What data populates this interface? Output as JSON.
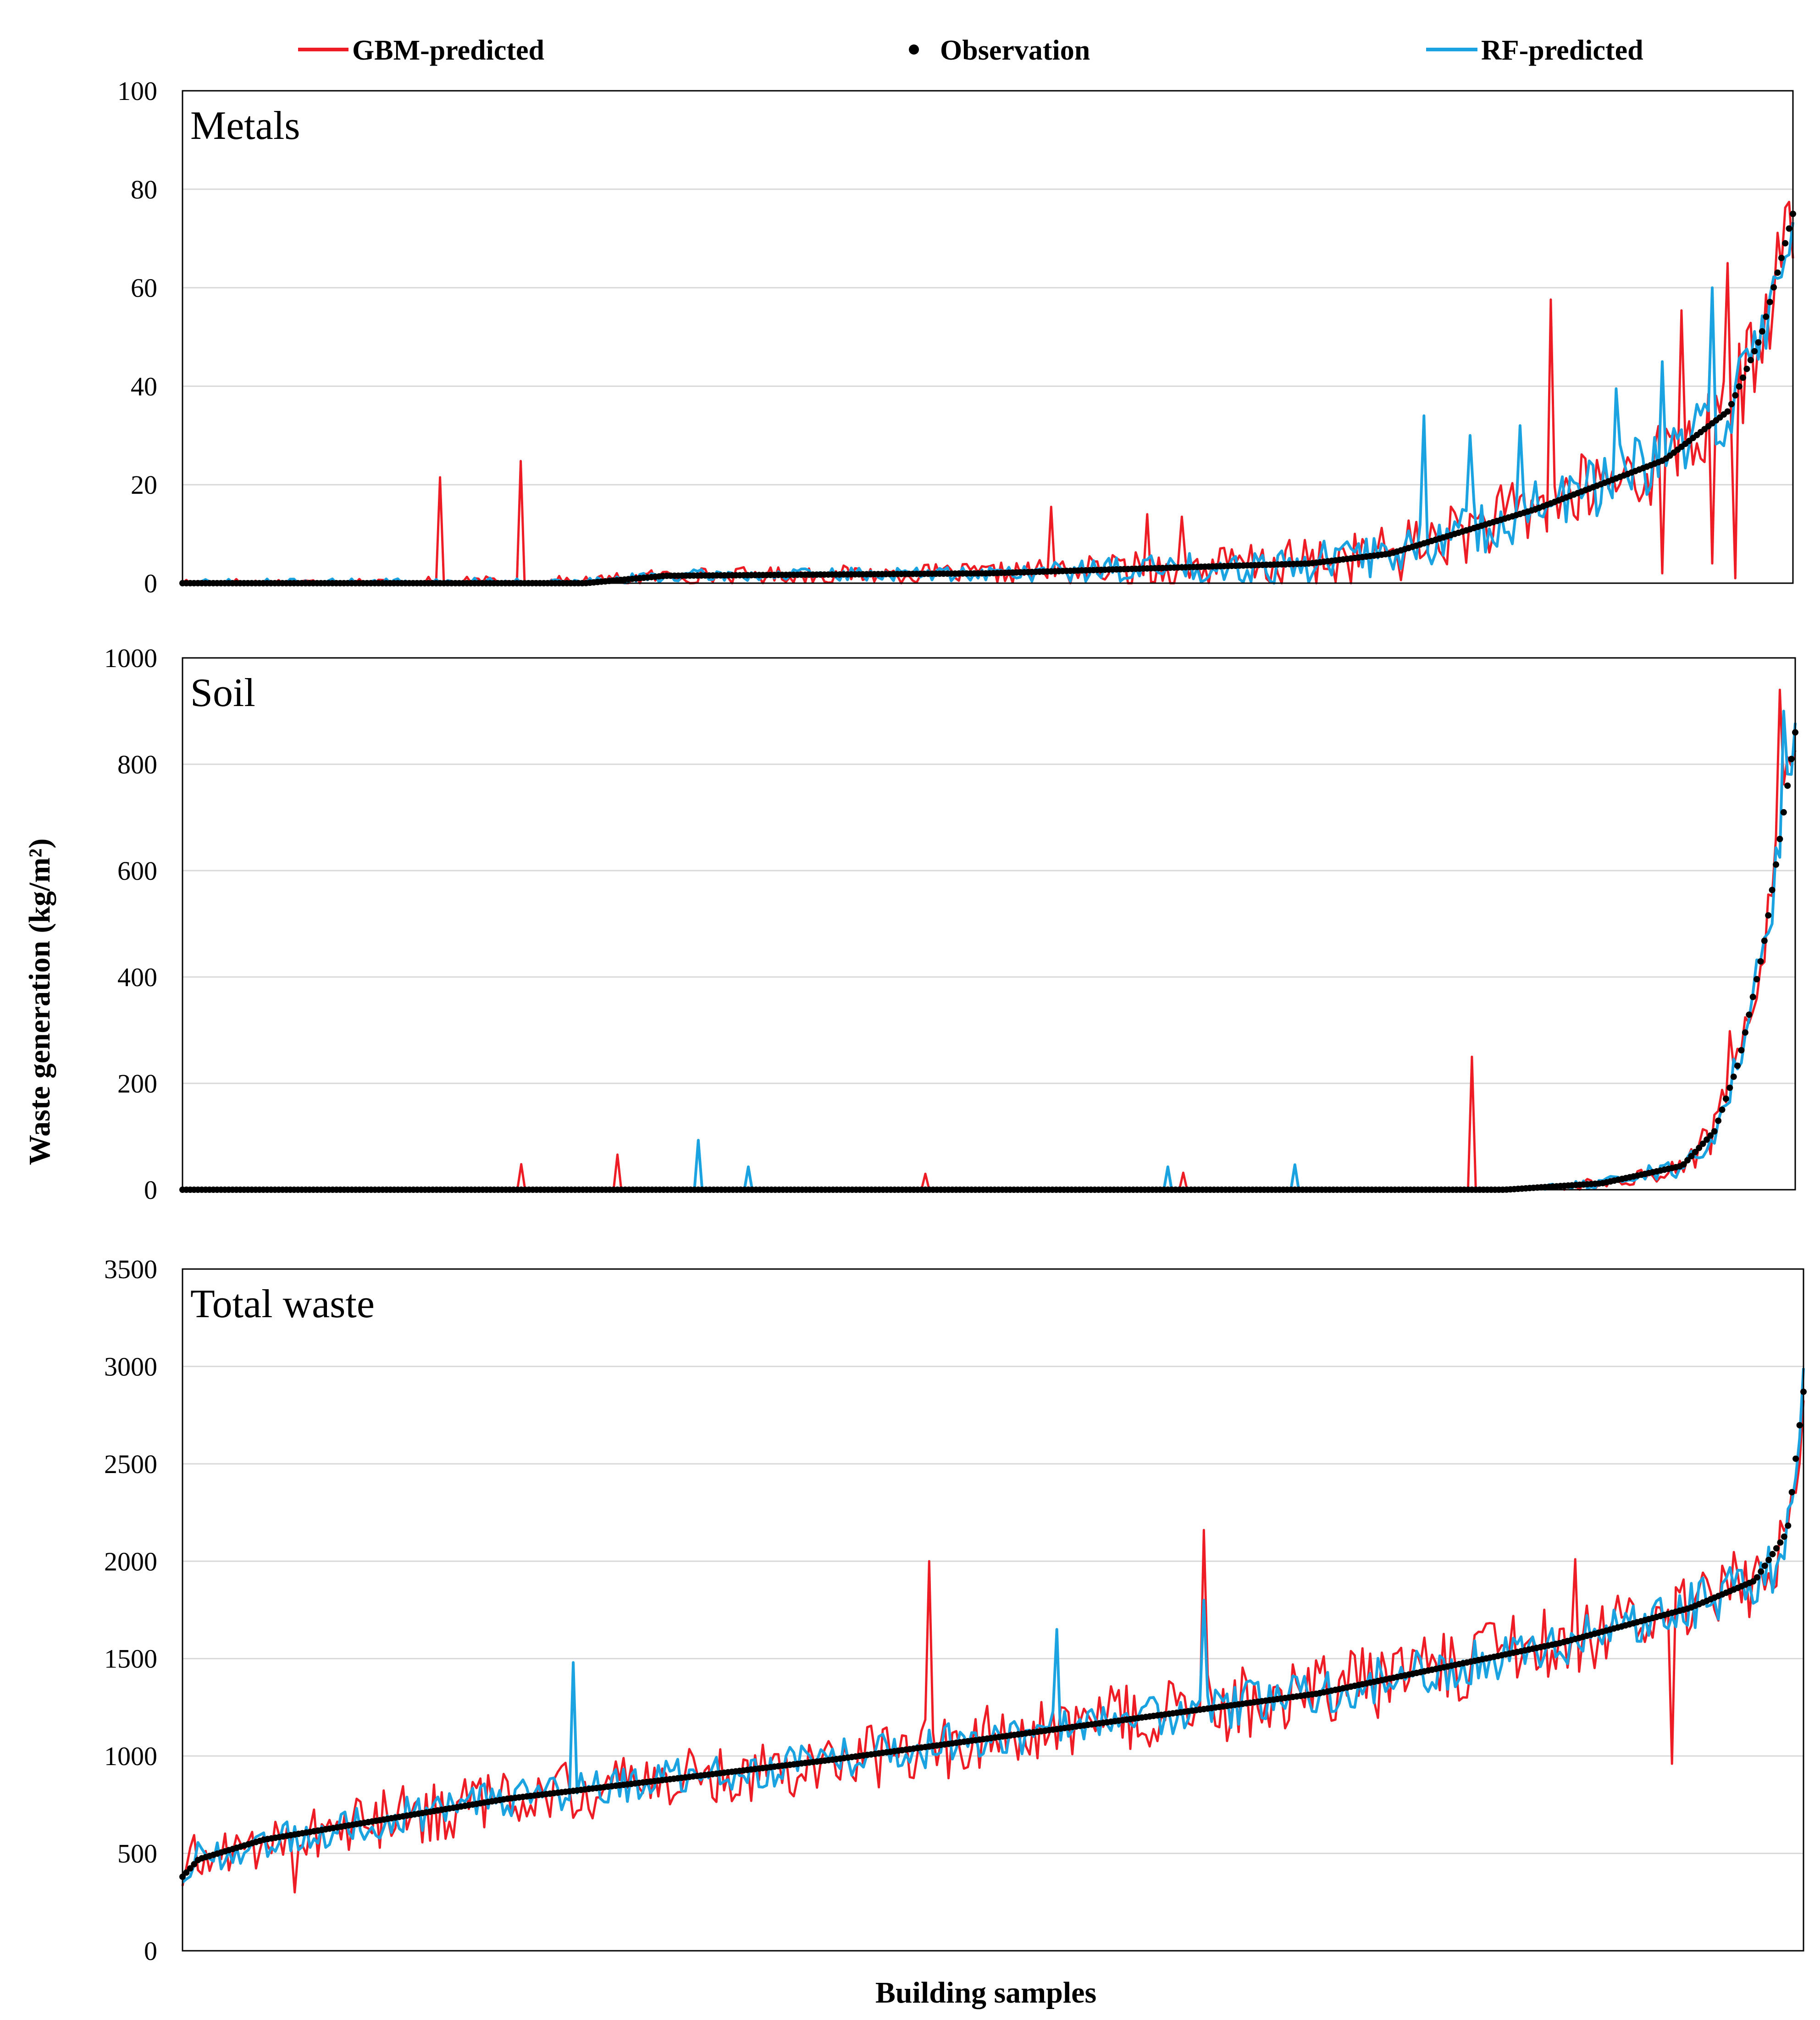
{
  "chart_data": {
    "type": "line",
    "y_axis_title": "Waste generation (kg/m²)",
    "x_axis_title": "Building samples",
    "n_samples": 420,
    "legend": [
      {
        "key": "gbm",
        "label": "GBM-predicted",
        "color": "#ee1c24",
        "marker": "line"
      },
      {
        "key": "obs",
        "label": "Observation",
        "color": "#000000",
        "marker": "dot"
      },
      {
        "key": "rf",
        "label": "RF-predicted",
        "color": "#1aa3e0",
        "marker": "line"
      }
    ],
    "panels": [
      {
        "id": "metals",
        "title": "Metals",
        "ylim": [
          0,
          100
        ],
        "yticks": [
          0,
          20,
          40,
          60,
          80,
          100
        ],
        "observation_anchors": [
          [
            0,
            0
          ],
          [
            0.25,
            0
          ],
          [
            0.3,
            1.5
          ],
          [
            0.5,
            2
          ],
          [
            0.7,
            4
          ],
          [
            0.75,
            6
          ],
          [
            0.84,
            15
          ],
          [
            0.92,
            25
          ],
          [
            0.96,
            35
          ],
          [
            0.98,
            50
          ],
          [
            1.0,
            75
          ]
        ],
        "noise": {
          "gbm": [
            [
              0,
              1
            ],
            [
              0.5,
              2
            ],
            [
              0.75,
              6
            ],
            [
              1.0,
              10
            ]
          ],
          "rf": [
            [
              0,
              0.8
            ],
            [
              0.5,
              1.5
            ],
            [
              0.75,
              5
            ],
            [
              1.0,
              8
            ]
          ]
        },
        "spikes": {
          "gbm": [
            [
              0.16,
              21.5
            ],
            [
              0.21,
              24.8
            ],
            [
              0.54,
              15.5
            ],
            [
              0.6,
              14
            ],
            [
              0.62,
              13.5
            ],
            [
              0.85,
              57.6
            ],
            [
              0.93,
              55.4
            ],
            [
              0.96,
              65
            ],
            [
              0.92,
              2
            ],
            [
              0.95,
              4
            ],
            [
              0.965,
              1
            ]
          ],
          "rf": [
            [
              0.77,
              34
            ],
            [
              0.8,
              30
            ],
            [
              0.83,
              32
            ],
            [
              0.89,
              39.5
            ],
            [
              0.92,
              45
            ],
            [
              0.95,
              60
            ]
          ]
        }
      },
      {
        "id": "soil",
        "title": "Soil",
        "ylim": [
          0,
          1000
        ],
        "yticks": [
          0,
          200,
          400,
          600,
          800,
          1000
        ],
        "observation_anchors": [
          [
            0,
            0
          ],
          [
            0.82,
            0
          ],
          [
            0.88,
            12
          ],
          [
            0.93,
            45
          ],
          [
            0.95,
            110
          ],
          [
            0.965,
            240
          ],
          [
            0.98,
            450
          ],
          [
            0.99,
            650
          ],
          [
            1.0,
            860
          ]
        ],
        "noise": {
          "gbm": [
            [
              0,
              1
            ],
            [
              0.82,
              2
            ],
            [
              0.9,
              15
            ],
            [
              1.0,
              60
            ]
          ],
          "rf": [
            [
              0,
              1
            ],
            [
              0.82,
              2
            ],
            [
              0.9,
              12
            ],
            [
              1.0,
              50
            ]
          ]
        },
        "spikes": {
          "gbm": [
            [
              0.27,
              66
            ],
            [
              0.46,
              30
            ],
            [
              0.8,
              250
            ],
            [
              0.96,
              298
            ],
            [
              0.99,
              940
            ],
            [
              0.21,
              48
            ],
            [
              0.62,
              32
            ]
          ],
          "rf": [
            [
              0.32,
              93
            ],
            [
              0.35,
              43
            ],
            [
              0.61,
              43
            ],
            [
              0.69,
              47
            ],
            [
              0.985,
              500
            ],
            [
              0.993,
              900
            ]
          ]
        }
      },
      {
        "id": "total",
        "title": "Total waste",
        "ylim": [
          0,
          3500
        ],
        "yticks": [
          0,
          500,
          1000,
          1500,
          2000,
          2500,
          3000,
          3500
        ],
        "observation_anchors": [
          [
            0,
            380
          ],
          [
            0.01,
            470
          ],
          [
            0.05,
            570
          ],
          [
            0.2,
            780
          ],
          [
            0.4,
            980
          ],
          [
            0.55,
            1150
          ],
          [
            0.7,
            1320
          ],
          [
            0.85,
            1580
          ],
          [
            0.93,
            1760
          ],
          [
            0.97,
            1900
          ],
          [
            0.99,
            2150
          ],
          [
            1.0,
            2870
          ]
        ],
        "noise": {
          "gbm": [
            [
              0,
              150
            ],
            [
              0.5,
              180
            ],
            [
              1.0,
              200
            ]
          ],
          "rf": [
            [
              0,
              90
            ],
            [
              0.5,
              110
            ],
            [
              1.0,
              130
            ]
          ]
        },
        "spikes": {
          "gbm": [
            [
              0.46,
              2000
            ],
            [
              0.63,
              2160
            ],
            [
              0.86,
              2010
            ],
            [
              0.92,
              960
            ],
            [
              0.07,
              300
            ]
          ],
          "rf": [
            [
              0.24,
              1480
            ],
            [
              0.54,
              1650
            ],
            [
              0.63,
              1800
            ],
            [
              0.98,
              1840
            ]
          ]
        }
      }
    ]
  }
}
